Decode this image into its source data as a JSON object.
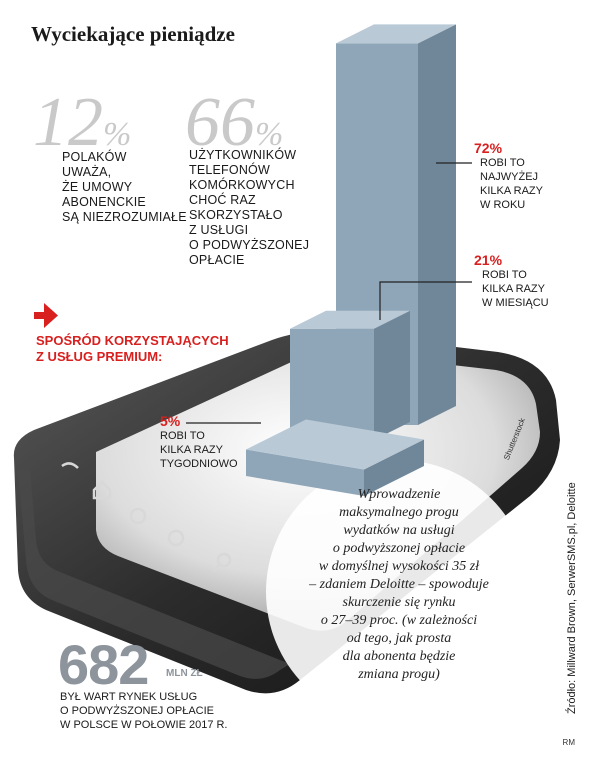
{
  "title": "Wyciekające pieniądze",
  "stat_12": {
    "value": "12",
    "sign": "%",
    "lines": [
      "POLAKÓW",
      "UWAŻA,",
      "ŻE UMOWY",
      "ABONENCKIE",
      "SĄ NIEZROZUMIAŁE"
    ]
  },
  "stat_66": {
    "value": "66",
    "sign": "%",
    "lines": [
      "UŻYTKOWNIKÓW",
      "TELEFONÓW",
      "KOMÓRKOWYCH",
      "CHOĆ RAZ",
      "SKORZYSTAŁO",
      "Z USŁUGI",
      "O PODWYŻSZONEJ",
      "OPŁACIE"
    ]
  },
  "premium_heading": [
    "SPOŚRÓD KORZYSTAJĄCYCH",
    "Z USŁUG PREMIUM:"
  ],
  "chart_data": {
    "type": "bar",
    "categories": [
      "kilka razy tygodniowo",
      "kilka razy w miesiącu",
      "najwyżej kilka razy w roku"
    ],
    "values": [
      5,
      21,
      72
    ],
    "unit": "%",
    "labels": [
      {
        "pct": "5%",
        "lines": [
          "ROBI TO",
          "KILKA RAZY",
          "TYGODNIOWO"
        ]
      },
      {
        "pct": "21%",
        "lines": [
          "ROBI TO",
          "KILKA RAZY",
          "W MIESIĄCU"
        ]
      },
      {
        "pct": "72%",
        "lines": [
          "ROBI TO",
          "NAJWYŻEJ",
          "KILKA RAZY",
          "W ROKU"
        ]
      }
    ],
    "colors": {
      "bar_front": "#8fa6b8",
      "bar_side": "#6f8799",
      "bar_top": "#b9c9d6"
    }
  },
  "quote_lines": [
    "Wprowadzenie",
    "maksymalnego progu",
    "wydatków na usługi",
    "o podwyższonej opłacie",
    "w domyślnej wysokości 35 zł",
    "– zdaniem Deloitte – spowoduje",
    "skurczenie się rynku",
    "o 27–39 proc. (w zależności",
    "od tego, jak prosta",
    "dla abonenta będzie",
    "zmiana progu)"
  ],
  "market": {
    "value": "682",
    "unit": "MLN ZŁ",
    "lines": [
      "BYŁ WART RYNEK USŁUG",
      "O PODWYŻSZONEJ OPŁACIE",
      "W POLSCE W POŁOWIE 2017 R."
    ]
  },
  "source": "Źródło: Millward Brown, SerwerSMS.pl, Deloitte",
  "photo_credit": "Shutterstock",
  "author": "RM"
}
